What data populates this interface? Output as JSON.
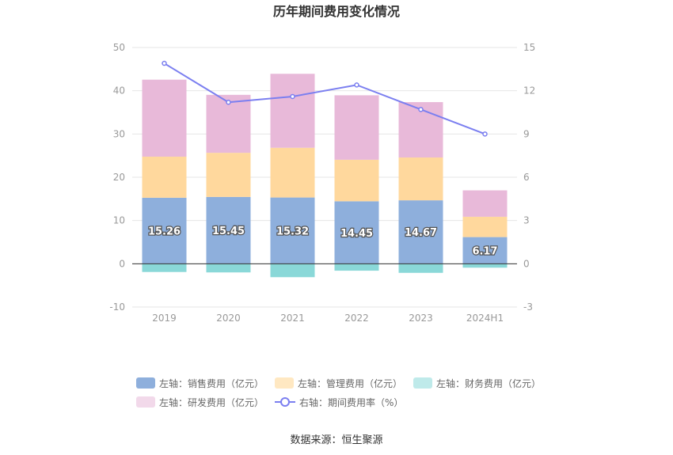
{
  "chart_data": {
    "type": "bar",
    "title": "历年期间费用变化情况",
    "categories": [
      "2019",
      "2020",
      "2021",
      "2022",
      "2023",
      "2024H1"
    ],
    "y_left": {
      "min": -10,
      "max": 50,
      "ticks": [
        "-10",
        "0",
        "10",
        "20",
        "30",
        "40",
        "50"
      ]
    },
    "y_right": {
      "min": -3,
      "max": 15,
      "ticks": [
        "-3",
        "0",
        "3",
        "6",
        "9",
        "12",
        "15"
      ]
    },
    "grid": true,
    "stacked_series": [
      {
        "name": "左轴：销售费用（亿元）",
        "color": "#8eafdc",
        "values": [
          15.26,
          15.45,
          15.32,
          14.45,
          14.67,
          6.17
        ],
        "labels": [
          "15.26",
          "15.45",
          "15.32",
          "14.45",
          "14.67",
          "6.17"
        ]
      },
      {
        "name": "左轴：管理费用（亿元）",
        "color": "#ffd89d",
        "values": [
          9.5,
          10.2,
          11.5,
          9.6,
          9.9,
          4.7
        ]
      },
      {
        "name": "左轴：财务费用（亿元）",
        "color": "#8ad8d8",
        "values": [
          -1.9,
          -2.0,
          -3.1,
          -1.6,
          -2.1,
          -0.9
        ]
      },
      {
        "name": "左轴：研发费用（亿元）",
        "color": "#e8b9d9",
        "values": [
          17.8,
          13.4,
          17.1,
          14.9,
          12.8,
          6.1
        ]
      }
    ],
    "line_series": {
      "name": "右轴：期间费用率（%）",
      "color": "#7b7ff0",
      "axis": "right",
      "values": [
        13.9,
        11.2,
        11.6,
        12.4,
        10.7,
        9.0
      ]
    },
    "legend_position": "bottom"
  },
  "source_text": "数据来源：恒生聚源"
}
